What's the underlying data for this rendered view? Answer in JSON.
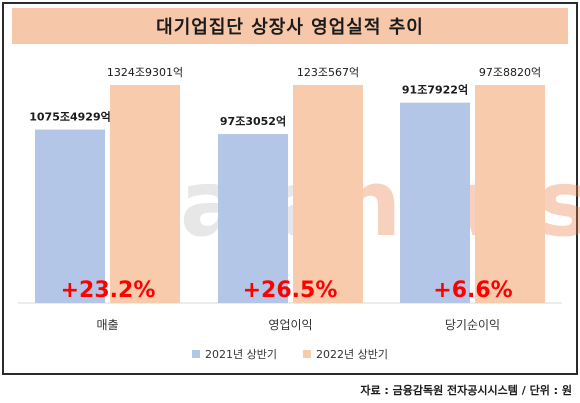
{
  "title": "대기업집단 상장사 영업실적 추이",
  "watermark": {
    "text_main": "data",
    "text_accent": "news"
  },
  "source": "자료 : 금융감독원 전자공시시스템 / 단위 : 원",
  "colors": {
    "series_2021": "#b4c6e7",
    "series_2022": "#f8cbad",
    "growth": "#ff0000",
    "title_band": "#f6c7a8"
  },
  "chart_data": {
    "type": "bar",
    "title": "대기업집단 상장사 영업실적 추이",
    "categories": [
      "매출",
      "영업이익",
      "당기순이익"
    ],
    "series": [
      {
        "name": "2021년 상반기",
        "values_jo": [
          1075.4929,
          97.3052,
          91.7922
        ],
        "labels": [
          "1075조4929억",
          "97조3052억",
          "91조7922억"
        ]
      },
      {
        "name": "2022년 상반기",
        "values_jo": [
          1324.9301,
          123.0567,
          97.882
        ],
        "labels": [
          "1324조9301억",
          "123조567억",
          "97조8820억"
        ]
      }
    ],
    "growth_labels": [
      "+23.2%",
      "+26.5%",
      "+6.6%"
    ],
    "legend_position": "bottom",
    "grid": false
  }
}
